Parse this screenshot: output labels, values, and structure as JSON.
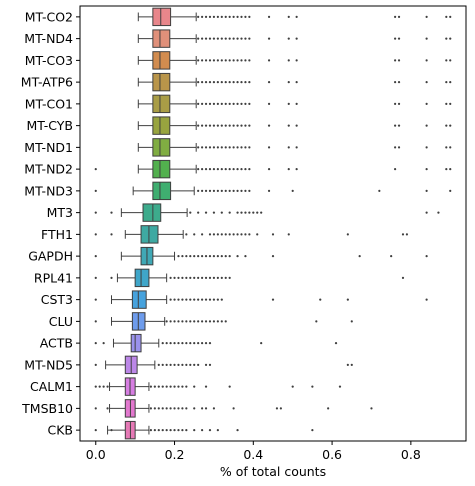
{
  "chart_data": {
    "type": "boxplot",
    "orientation": "horizontal",
    "title": "",
    "xlabel": "% of total counts",
    "ylabel": "",
    "xlim": [
      -0.04,
      0.94
    ],
    "xticks": [
      0.0,
      0.2,
      0.4,
      0.6,
      0.8
    ],
    "xtick_labels": [
      "0.0",
      "0.2",
      "0.4",
      "0.6",
      "0.8"
    ],
    "grid": false,
    "series": [
      {
        "name": "MT-CO2",
        "color": "#e8868b",
        "q1": 0.145,
        "median": 0.165,
        "q3": 0.19,
        "whisker_low": 0.108,
        "whisker_high": 0.255,
        "outliers": [
          0.26,
          0.27,
          0.28,
          0.29,
          0.3,
          0.31,
          0.32,
          0.33,
          0.34,
          0.35,
          0.36,
          0.37,
          0.38,
          0.39,
          0.44,
          0.49,
          0.51,
          0.76,
          0.77,
          0.84,
          0.89,
          0.9
        ]
      },
      {
        "name": "MT-ND4",
        "color": "#e0907a",
        "q1": 0.145,
        "median": 0.163,
        "q3": 0.188,
        "whisker_low": 0.108,
        "whisker_high": 0.255,
        "outliers": [
          0.26,
          0.27,
          0.28,
          0.29,
          0.3,
          0.31,
          0.32,
          0.33,
          0.34,
          0.35,
          0.36,
          0.37,
          0.38,
          0.39,
          0.44,
          0.49,
          0.51,
          0.76,
          0.77,
          0.84,
          0.89,
          0.9
        ]
      },
      {
        "name": "MT-CO3",
        "color": "#d28c4f",
        "q1": 0.145,
        "median": 0.163,
        "q3": 0.188,
        "whisker_low": 0.108,
        "whisker_high": 0.255,
        "outliers": [
          0.26,
          0.27,
          0.28,
          0.29,
          0.3,
          0.31,
          0.32,
          0.33,
          0.34,
          0.35,
          0.36,
          0.37,
          0.38,
          0.39,
          0.44,
          0.49,
          0.51,
          0.76,
          0.77,
          0.84,
          0.89,
          0.9
        ]
      },
      {
        "name": "MT-ATP6",
        "color": "#b9954a",
        "q1": 0.145,
        "median": 0.163,
        "q3": 0.188,
        "whisker_low": 0.108,
        "whisker_high": 0.255,
        "outliers": [
          0.26,
          0.27,
          0.28,
          0.29,
          0.3,
          0.31,
          0.32,
          0.33,
          0.34,
          0.35,
          0.36,
          0.37,
          0.38,
          0.39,
          0.44,
          0.49,
          0.51,
          0.76,
          0.77,
          0.84,
          0.89,
          0.9
        ]
      },
      {
        "name": "MT-CO1",
        "color": "#a99d46",
        "q1": 0.145,
        "median": 0.163,
        "q3": 0.188,
        "whisker_low": 0.108,
        "whisker_high": 0.255,
        "outliers": [
          0.26,
          0.27,
          0.28,
          0.29,
          0.3,
          0.31,
          0.32,
          0.33,
          0.34,
          0.35,
          0.36,
          0.37,
          0.38,
          0.39,
          0.44,
          0.49,
          0.51,
          0.76,
          0.77,
          0.84,
          0.89,
          0.9
        ]
      },
      {
        "name": "MT-CYB",
        "color": "#98a43f",
        "q1": 0.145,
        "median": 0.163,
        "q3": 0.188,
        "whisker_low": 0.108,
        "whisker_high": 0.255,
        "outliers": [
          0.26,
          0.27,
          0.28,
          0.29,
          0.3,
          0.31,
          0.32,
          0.33,
          0.34,
          0.35,
          0.36,
          0.37,
          0.38,
          0.39,
          0.44,
          0.49,
          0.51,
          0.76,
          0.77,
          0.84,
          0.89,
          0.9
        ]
      },
      {
        "name": "MT-ND1",
        "color": "#80ad42",
        "q1": 0.145,
        "median": 0.163,
        "q3": 0.188,
        "whisker_low": 0.108,
        "whisker_high": 0.255,
        "outliers": [
          0.26,
          0.27,
          0.28,
          0.29,
          0.3,
          0.31,
          0.32,
          0.33,
          0.34,
          0.35,
          0.36,
          0.37,
          0.38,
          0.39,
          0.44,
          0.49,
          0.51,
          0.76,
          0.77,
          0.84,
          0.89,
          0.9
        ]
      },
      {
        "name": "MT-ND2",
        "color": "#52b04e",
        "q1": 0.145,
        "median": 0.163,
        "q3": 0.188,
        "whisker_low": 0.108,
        "whisker_high": 0.255,
        "outliers": [
          0.0,
          0.26,
          0.27,
          0.28,
          0.29,
          0.3,
          0.31,
          0.32,
          0.33,
          0.34,
          0.35,
          0.36,
          0.37,
          0.38,
          0.39,
          0.44,
          0.49,
          0.51,
          0.76,
          0.84,
          0.89,
          0.9
        ]
      },
      {
        "name": "MT-ND3",
        "color": "#3fae70",
        "q1": 0.145,
        "median": 0.163,
        "q3": 0.19,
        "whisker_low": 0.095,
        "whisker_high": 0.25,
        "outliers": [
          0.0,
          0.26,
          0.27,
          0.28,
          0.29,
          0.3,
          0.31,
          0.32,
          0.33,
          0.34,
          0.35,
          0.36,
          0.37,
          0.38,
          0.39,
          0.44,
          0.5,
          0.72,
          0.84,
          0.9
        ]
      },
      {
        "name": "MT3",
        "color": "#3dab8c",
        "q1": 0.12,
        "median": 0.145,
        "q3": 0.165,
        "whisker_low": 0.065,
        "whisker_high": 0.232,
        "outliers": [
          0.0,
          0.04,
          0.24,
          0.26,
          0.28,
          0.3,
          0.32,
          0.34,
          0.36,
          0.37,
          0.38,
          0.39,
          0.4,
          0.41,
          0.42,
          0.84,
          0.87
        ]
      },
      {
        "name": "FTH1",
        "color": "#3ea9a2",
        "q1": 0.115,
        "median": 0.135,
        "q3": 0.158,
        "whisker_low": 0.075,
        "whisker_high": 0.222,
        "outliers": [
          0.0,
          0.04,
          0.23,
          0.25,
          0.27,
          0.29,
          0.3,
          0.31,
          0.32,
          0.33,
          0.34,
          0.35,
          0.36,
          0.37,
          0.38,
          0.39,
          0.41,
          0.45,
          0.49,
          0.64,
          0.78,
          0.79
        ]
      },
      {
        "name": "GAPDH",
        "color": "#40a8b5",
        "q1": 0.115,
        "median": 0.13,
        "q3": 0.145,
        "whisker_low": 0.065,
        "whisker_high": 0.2,
        "outliers": [
          0.0,
          0.21,
          0.22,
          0.23,
          0.24,
          0.25,
          0.26,
          0.27,
          0.28,
          0.29,
          0.3,
          0.31,
          0.32,
          0.33,
          0.34,
          0.36,
          0.38,
          0.45,
          0.67,
          0.75,
          0.84
        ]
      },
      {
        "name": "RPL41",
        "color": "#3fa6c9",
        "q1": 0.1,
        "median": 0.115,
        "q3": 0.135,
        "whisker_low": 0.055,
        "whisker_high": 0.18,
        "outliers": [
          0.0,
          0.04,
          0.19,
          0.2,
          0.21,
          0.22,
          0.23,
          0.24,
          0.25,
          0.26,
          0.27,
          0.28,
          0.29,
          0.3,
          0.31,
          0.32,
          0.33,
          0.34,
          0.78
        ]
      },
      {
        "name": "CST3",
        "color": "#46a2dd",
        "q1": 0.093,
        "median": 0.108,
        "q3": 0.128,
        "whisker_low": 0.04,
        "whisker_high": 0.18,
        "outliers": [
          0.0,
          0.19,
          0.2,
          0.21,
          0.22,
          0.23,
          0.24,
          0.25,
          0.26,
          0.27,
          0.28,
          0.29,
          0.3,
          0.31,
          0.32,
          0.45,
          0.57,
          0.64,
          0.84
        ]
      },
      {
        "name": "CLU",
        "color": "#6e9cec",
        "q1": 0.093,
        "median": 0.108,
        "q3": 0.125,
        "whisker_low": 0.04,
        "whisker_high": 0.175,
        "outliers": [
          0.0,
          0.18,
          0.19,
          0.2,
          0.21,
          0.22,
          0.23,
          0.24,
          0.25,
          0.26,
          0.27,
          0.28,
          0.29,
          0.3,
          0.31,
          0.32,
          0.33,
          0.56,
          0.65
        ]
      },
      {
        "name": "ACTB",
        "color": "#9a92ec",
        "q1": 0.09,
        "median": 0.1,
        "q3": 0.115,
        "whisker_low": 0.045,
        "whisker_high": 0.16,
        "outliers": [
          0.0,
          0.02,
          0.17,
          0.18,
          0.19,
          0.2,
          0.21,
          0.22,
          0.23,
          0.24,
          0.25,
          0.26,
          0.27,
          0.28,
          0.29,
          0.42,
          0.61
        ]
      },
      {
        "name": "MT-ND5",
        "color": "#bc87e8",
        "q1": 0.075,
        "median": 0.09,
        "q3": 0.105,
        "whisker_low": 0.025,
        "whisker_high": 0.15,
        "outliers": [
          0.0,
          0.16,
          0.17,
          0.18,
          0.19,
          0.2,
          0.21,
          0.22,
          0.23,
          0.24,
          0.25,
          0.26,
          0.28,
          0.29,
          0.64,
          0.65
        ]
      },
      {
        "name": "CALM1",
        "color": "#d77ee2",
        "q1": 0.075,
        "median": 0.087,
        "q3": 0.1,
        "whisker_low": 0.035,
        "whisker_high": 0.135,
        "outliers": [
          0.0,
          0.01,
          0.02,
          0.03,
          0.14,
          0.15,
          0.16,
          0.17,
          0.18,
          0.19,
          0.2,
          0.21,
          0.22,
          0.23,
          0.25,
          0.28,
          0.34,
          0.5,
          0.55,
          0.62
        ]
      },
      {
        "name": "TMSB10",
        "color": "#e378cf",
        "q1": 0.075,
        "median": 0.088,
        "q3": 0.1,
        "whisker_low": 0.035,
        "whisker_high": 0.135,
        "outliers": [
          0.0,
          0.03,
          0.14,
          0.15,
          0.16,
          0.17,
          0.18,
          0.19,
          0.2,
          0.21,
          0.22,
          0.23,
          0.25,
          0.27,
          0.28,
          0.3,
          0.35,
          0.46,
          0.47,
          0.59,
          0.7
        ]
      },
      {
        "name": "CKB",
        "color": "#e679b6",
        "q1": 0.075,
        "median": 0.088,
        "q3": 0.1,
        "whisker_low": 0.03,
        "whisker_high": 0.135,
        "outliers": [
          0.0,
          0.04,
          0.14,
          0.15,
          0.16,
          0.17,
          0.18,
          0.19,
          0.2,
          0.21,
          0.22,
          0.23,
          0.25,
          0.27,
          0.29,
          0.31,
          0.36,
          0.55
        ]
      }
    ]
  }
}
